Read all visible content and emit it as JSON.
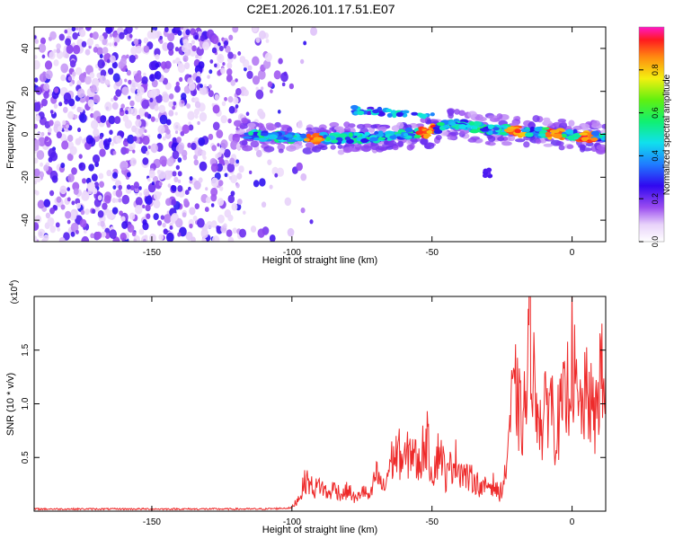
{
  "title": "C2E1.2026.101.17.51.E07",
  "colors": {
    "trace": "#ee2a2a",
    "noise": "#7a22ee",
    "axis": "#000000"
  },
  "chart_data": [
    {
      "type": "heatmap",
      "name": "spectrogram",
      "xlabel": "Height of straight line (km)",
      "ylabel": "Frequency (Hz)",
      "xlim": [
        -192,
        12
      ],
      "ylim": [
        -50,
        50
      ],
      "xticks": [
        -150,
        -100,
        -50,
        0
      ],
      "yticks": [
        -40,
        -20,
        0,
        20,
        40
      ],
      "colorbar": {
        "label": "Normalized spectral amplitude",
        "range": [
          0,
          1
        ],
        "ticks": [
          0.0,
          0.2,
          0.4,
          0.6,
          0.8
        ],
        "tick_labels": [
          "0.0",
          "0.2",
          "0.4",
          "0.6",
          "0.8"
        ]
      },
      "features": {
        "noise_region_km": [
          -192,
          -100
        ],
        "signal_band_km": [
          -120,
          12
        ],
        "signal_center_hz": 0,
        "signal_halfwidth_hz": 6,
        "echo_patch": {
          "km": -75,
          "hz": 11
        },
        "side_blob": {
          "km": -30,
          "hz": -18
        },
        "peak_amplitude_locations_km": [
          -92,
          -52,
          -20,
          -6,
          5
        ]
      }
    },
    {
      "type": "line",
      "name": "snr",
      "xlabel": "Height of straight line (km)",
      "ylabel": "SNR (10 * v/v)",
      "scale_label": "(x10",
      "scale_exponent": "4",
      "xlim": [
        -192,
        12
      ],
      "ylim": [
        0,
        2.0
      ],
      "xticks": [
        -150,
        -100,
        -50,
        0
      ],
      "yticks": [
        0.5,
        1.0,
        1.5
      ],
      "series": [
        {
          "name": "SNR",
          "x": [
            -192,
            -180,
            -170,
            -160,
            -150,
            -140,
            -130,
            -120,
            -110,
            -100,
            -97,
            -95,
            -92,
            -90,
            -87,
            -85,
            -82,
            -80,
            -77,
            -75,
            -72,
            -70,
            -67,
            -65,
            -62,
            -60,
            -57,
            -55,
            -52,
            -50,
            -47,
            -45,
            -42,
            -40,
            -37,
            -35,
            -32,
            -30,
            -28,
            -26,
            -24,
            -22,
            -20,
            -18,
            -16,
            -15,
            -14,
            -13,
            -12,
            -11,
            -10,
            -8,
            -6,
            -4,
            -2,
            0,
            2,
            4,
            6,
            8,
            10,
            12
          ],
          "values": [
            0.02,
            0.02,
            0.02,
            0.02,
            0.02,
            0.02,
            0.02,
            0.02,
            0.02,
            0.03,
            0.15,
            0.3,
            0.2,
            0.25,
            0.15,
            0.22,
            0.15,
            0.2,
            0.1,
            0.2,
            0.12,
            0.35,
            0.2,
            0.45,
            0.55,
            0.45,
            0.6,
            0.4,
            0.7,
            0.35,
            0.6,
            0.3,
            0.5,
            0.4,
            0.3,
            0.3,
            0.2,
            0.25,
            0.25,
            0.15,
            0.3,
            0.9,
            1.1,
            0.8,
            1.1,
            2.0,
            1.4,
            0.9,
            1.15,
            0.7,
            0.85,
            1.15,
            0.75,
            0.9,
            1.05,
            1.5,
            0.9,
            1.0,
            1.1,
            0.8,
            1.3,
            1.05
          ]
        }
      ]
    }
  ]
}
